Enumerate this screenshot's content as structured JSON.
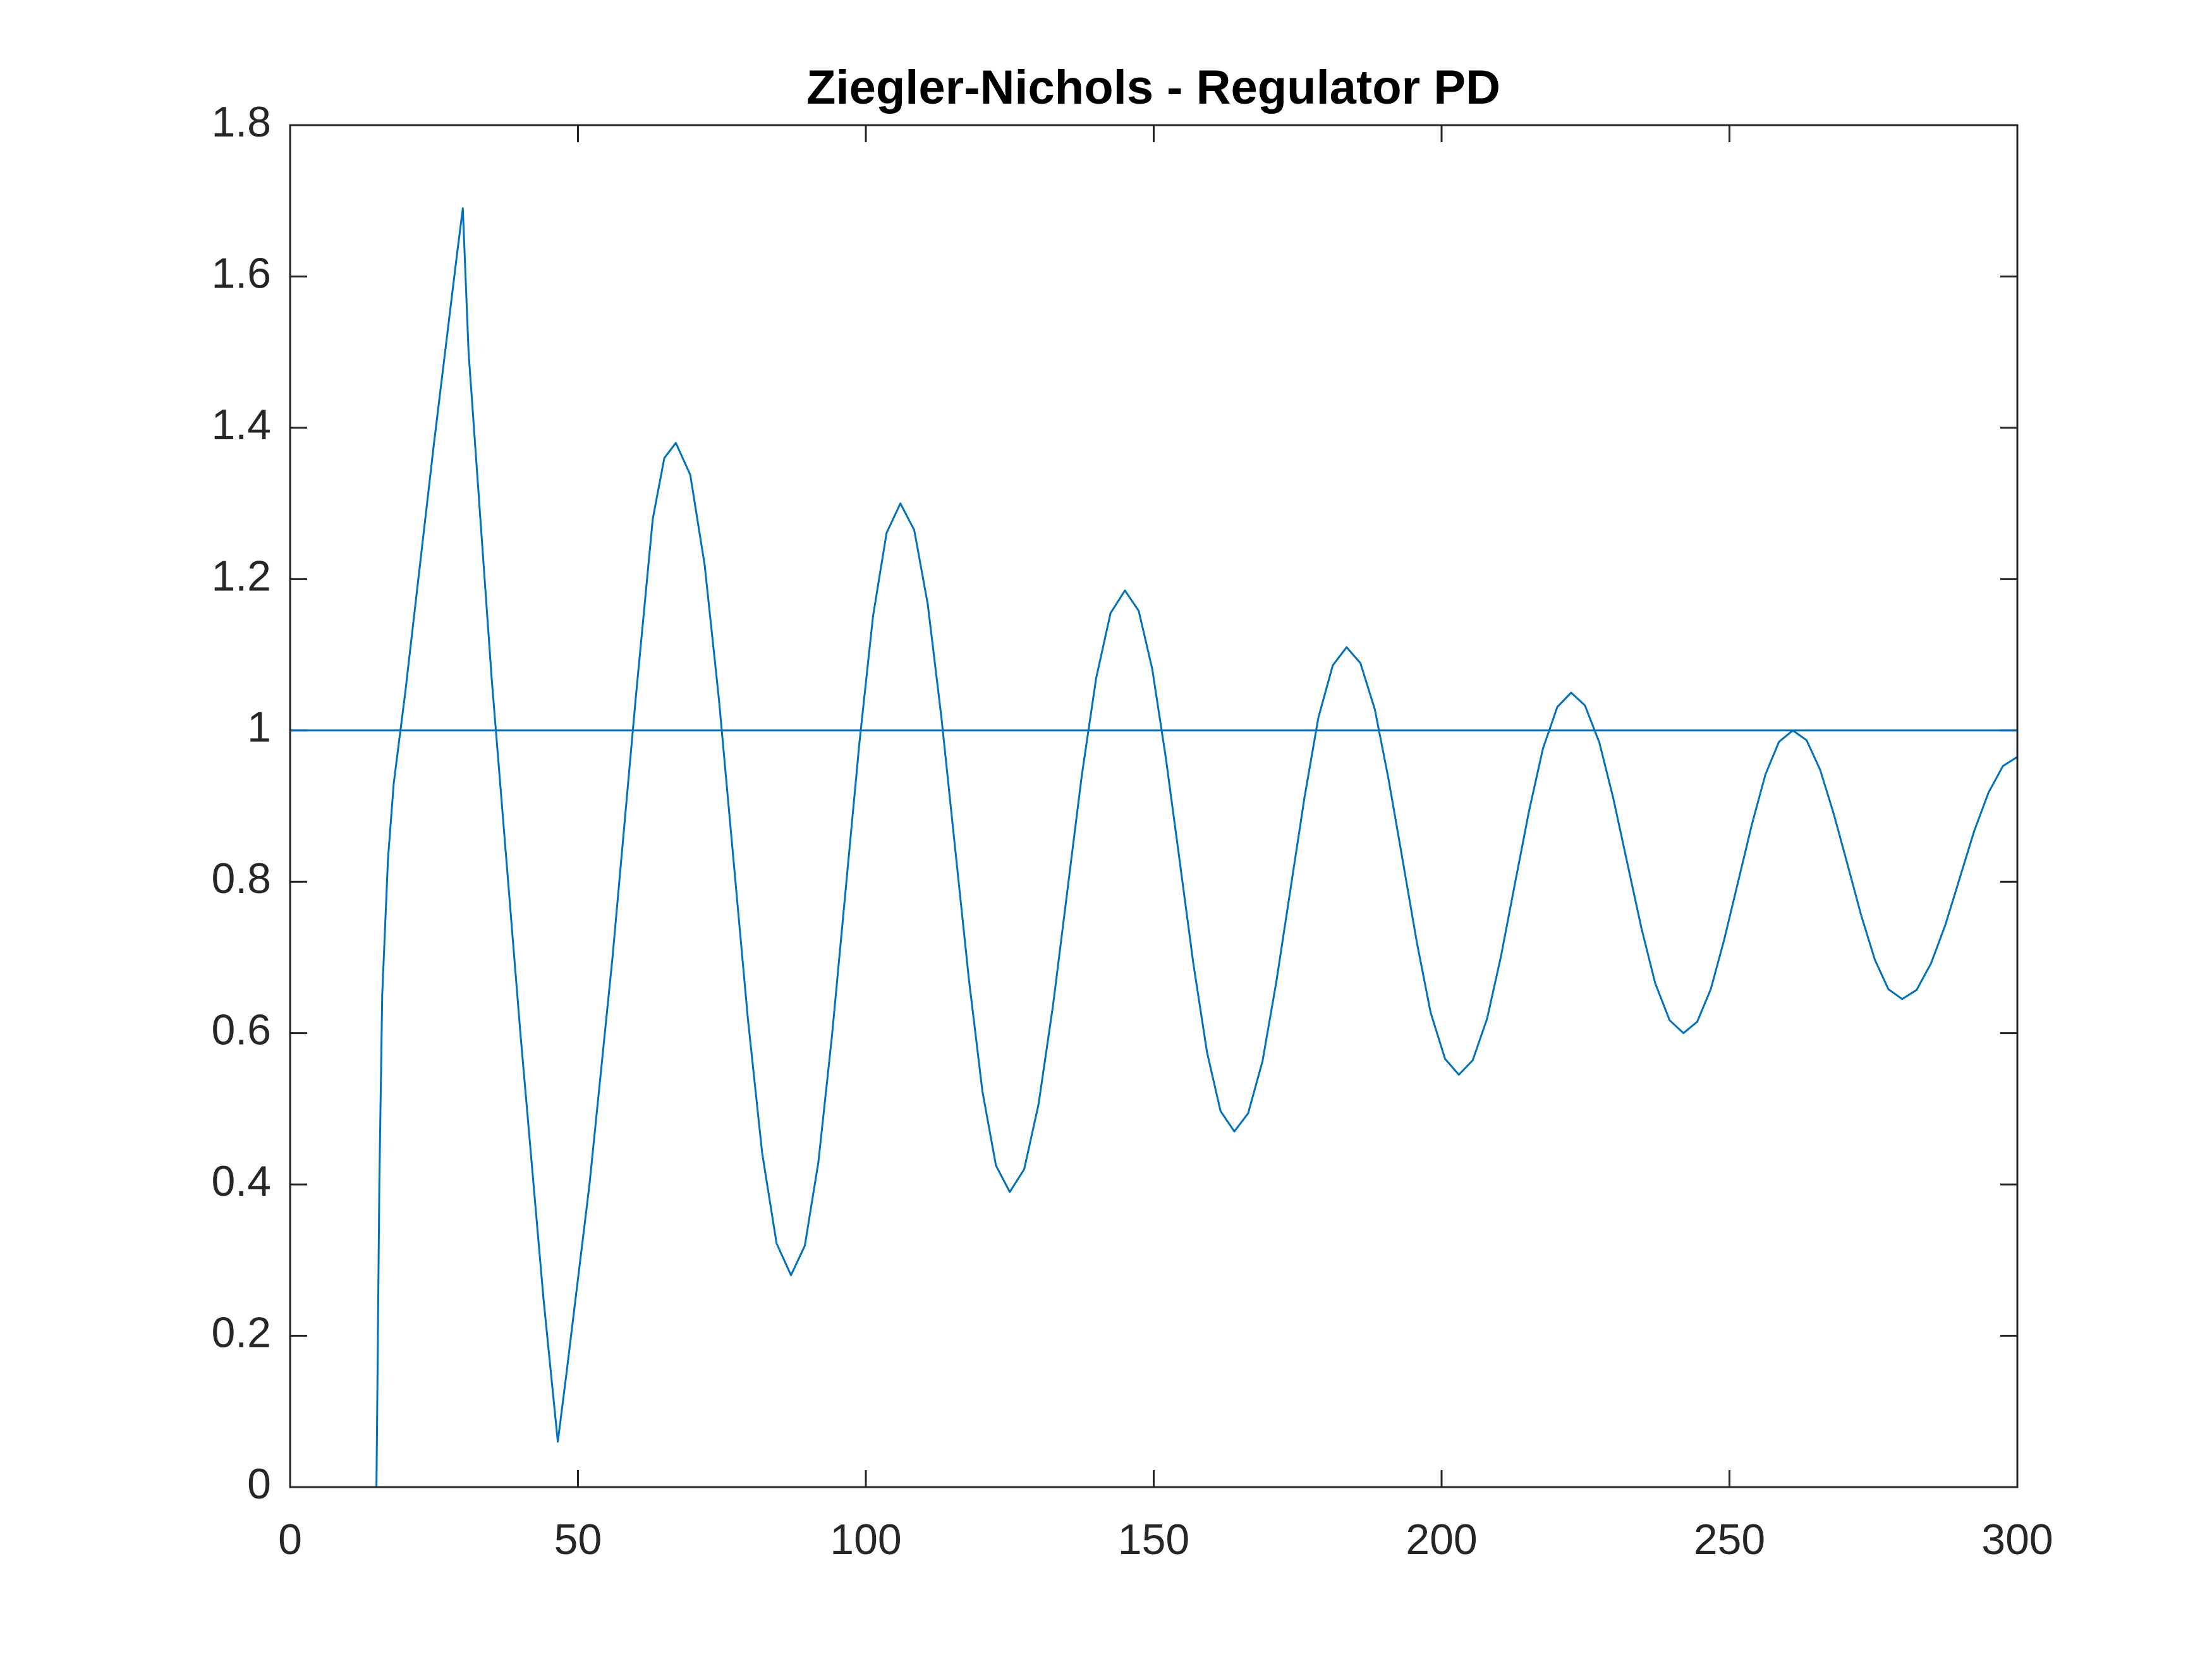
{
  "chart_data": {
    "type": "line",
    "title": "Ziegler-Nichols - Regulator PD",
    "xlim": [
      0,
      300
    ],
    "xticks": [
      0,
      50,
      100,
      150,
      200,
      250,
      300
    ],
    "ylim": [
      0,
      1.8
    ],
    "yticks": [
      0,
      0.2,
      0.4,
      0.6,
      0.8,
      1,
      1.2,
      1.4,
      1.6,
      1.8
    ],
    "grid": false,
    "series": [
      {
        "color": "#0072bd",
        "x": [
          0,
          15,
          15.5,
          16,
          17,
          18,
          20,
          25,
          29,
          30,
          31,
          35,
          40,
          44,
          46.5,
          48,
          52,
          56,
          60,
          63,
          65,
          67,
          69.5,
          72,
          74.5,
          77,
          79.5,
          82,
          84.5,
          87,
          89.4,
          91.75,
          94.1,
          96.5,
          98.9,
          101.25,
          103.6,
          106,
          108.4,
          110.75,
          113.1,
          115.5,
          117.9,
          120.25,
          122.6,
          125,
          127.5,
          130,
          132.5,
          135,
          137.5,
          140,
          142.5,
          145,
          147.4,
          149.75,
          152.1,
          154.5,
          156.9,
          159.25,
          161.6,
          164,
          166.4,
          168.9,
          171.3,
          173.75,
          176.2,
          178.6,
          181.1,
          183.5,
          185.9,
          188.4,
          190.8,
          193.25,
          195.7,
          198.1,
          200.6,
          203,
          205.4,
          207.9,
          210.3,
          212.75,
          215.2,
          217.6,
          220.1,
          222.5,
          224.9,
          227.4,
          229.8,
          232.25,
          234.7,
          237.1,
          239.6,
          242,
          244.4,
          246.75,
          249.1,
          251.5,
          253.9,
          256.25,
          258.6,
          261,
          263.4,
          265.75,
          268.1,
          270.5,
          272.9,
          275.25,
          277.6,
          280,
          282.5,
          285,
          287.5,
          290,
          292.5,
          295,
          297.5,
          300
        ],
        "values": [
          0,
          0,
          0.4,
          0.65,
          0.83,
          0.93,
          1.05,
          1.38,
          1.63,
          1.69,
          1.5,
          1.07,
          0.6,
          0.25,
          0.06,
          0.15,
          0.4,
          0.7,
          1.04,
          1.28,
          1.36,
          1.38,
          1.338,
          1.219,
          1.04,
          0.83,
          0.62,
          0.441,
          0.322,
          0.28,
          0.319,
          0.429,
          0.595,
          0.79,
          0.985,
          1.151,
          1.261,
          1.3,
          1.265,
          1.167,
          1.019,
          0.845,
          0.671,
          0.523,
          0.425,
          0.39,
          0.42,
          0.506,
          0.636,
          0.788,
          0.94,
          1.069,
          1.155,
          1.185,
          1.158,
          1.081,
          0.964,
          0.828,
          0.691,
          0.575,
          0.497,
          0.47,
          0.494,
          0.563,
          0.668,
          0.79,
          0.912,
          1.017,
          1.086,
          1.11,
          1.089,
          1.028,
          0.935,
          0.828,
          0.72,
          0.627,
          0.566,
          0.545,
          0.564,
          0.619,
          0.701,
          0.798,
          0.894,
          0.976,
          1.031,
          1.05,
          1.033,
          0.984,
          0.911,
          0.825,
          0.739,
          0.666,
          0.617,
          0.6,
          0.615,
          0.658,
          0.724,
          0.8,
          0.876,
          0.942,
          0.985,
          1.0,
          0.987,
          0.948,
          0.89,
          0.823,
          0.755,
          0.697,
          0.658,
          0.645,
          0.657,
          0.692,
          0.743,
          0.805,
          0.867,
          0.918,
          0.953,
          0.965
        ]
      },
      {
        "color": "#0072bd",
        "x": [
          0,
          300
        ],
        "values": [
          1,
          1
        ]
      }
    ]
  }
}
